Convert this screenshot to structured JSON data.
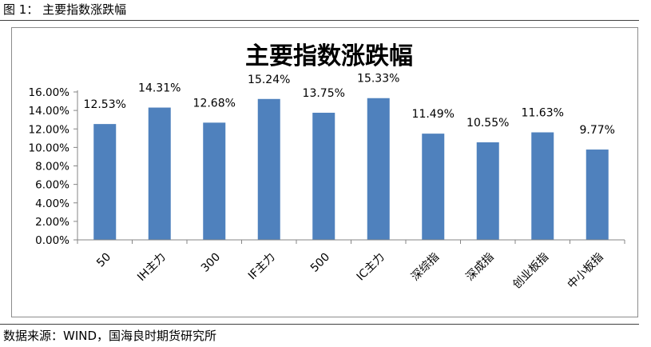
{
  "figure": {
    "caption": "图 1：  主要指数涨跌幅",
    "source": "数据来源：WIND，国海良时期货研究所"
  },
  "chart_data": {
    "type": "bar",
    "title": "主要指数涨跌幅",
    "categories": [
      "50",
      "IH主力",
      "300",
      "IF主力",
      "500",
      "IC主力",
      "深综指",
      "深成指",
      "创业板指",
      "中小板指"
    ],
    "values": [
      12.53,
      14.31,
      12.68,
      15.24,
      13.75,
      15.33,
      11.49,
      10.55,
      11.63,
      9.77
    ],
    "data_labels": [
      "12.53%",
      "14.31%",
      "12.68%",
      "15.24%",
      "13.75%",
      "15.33%",
      "11.49%",
      "10.55%",
      "11.63%",
      "9.77%"
    ],
    "y_ticks": [
      "0.00%",
      "2.00%",
      "4.00%",
      "6.00%",
      "8.00%",
      "10.00%",
      "12.00%",
      "14.00%",
      "16.00%"
    ],
    "ylim": [
      0,
      16
    ],
    "bar_color": "#4f81bd",
    "legend": "none",
    "grid": false
  }
}
